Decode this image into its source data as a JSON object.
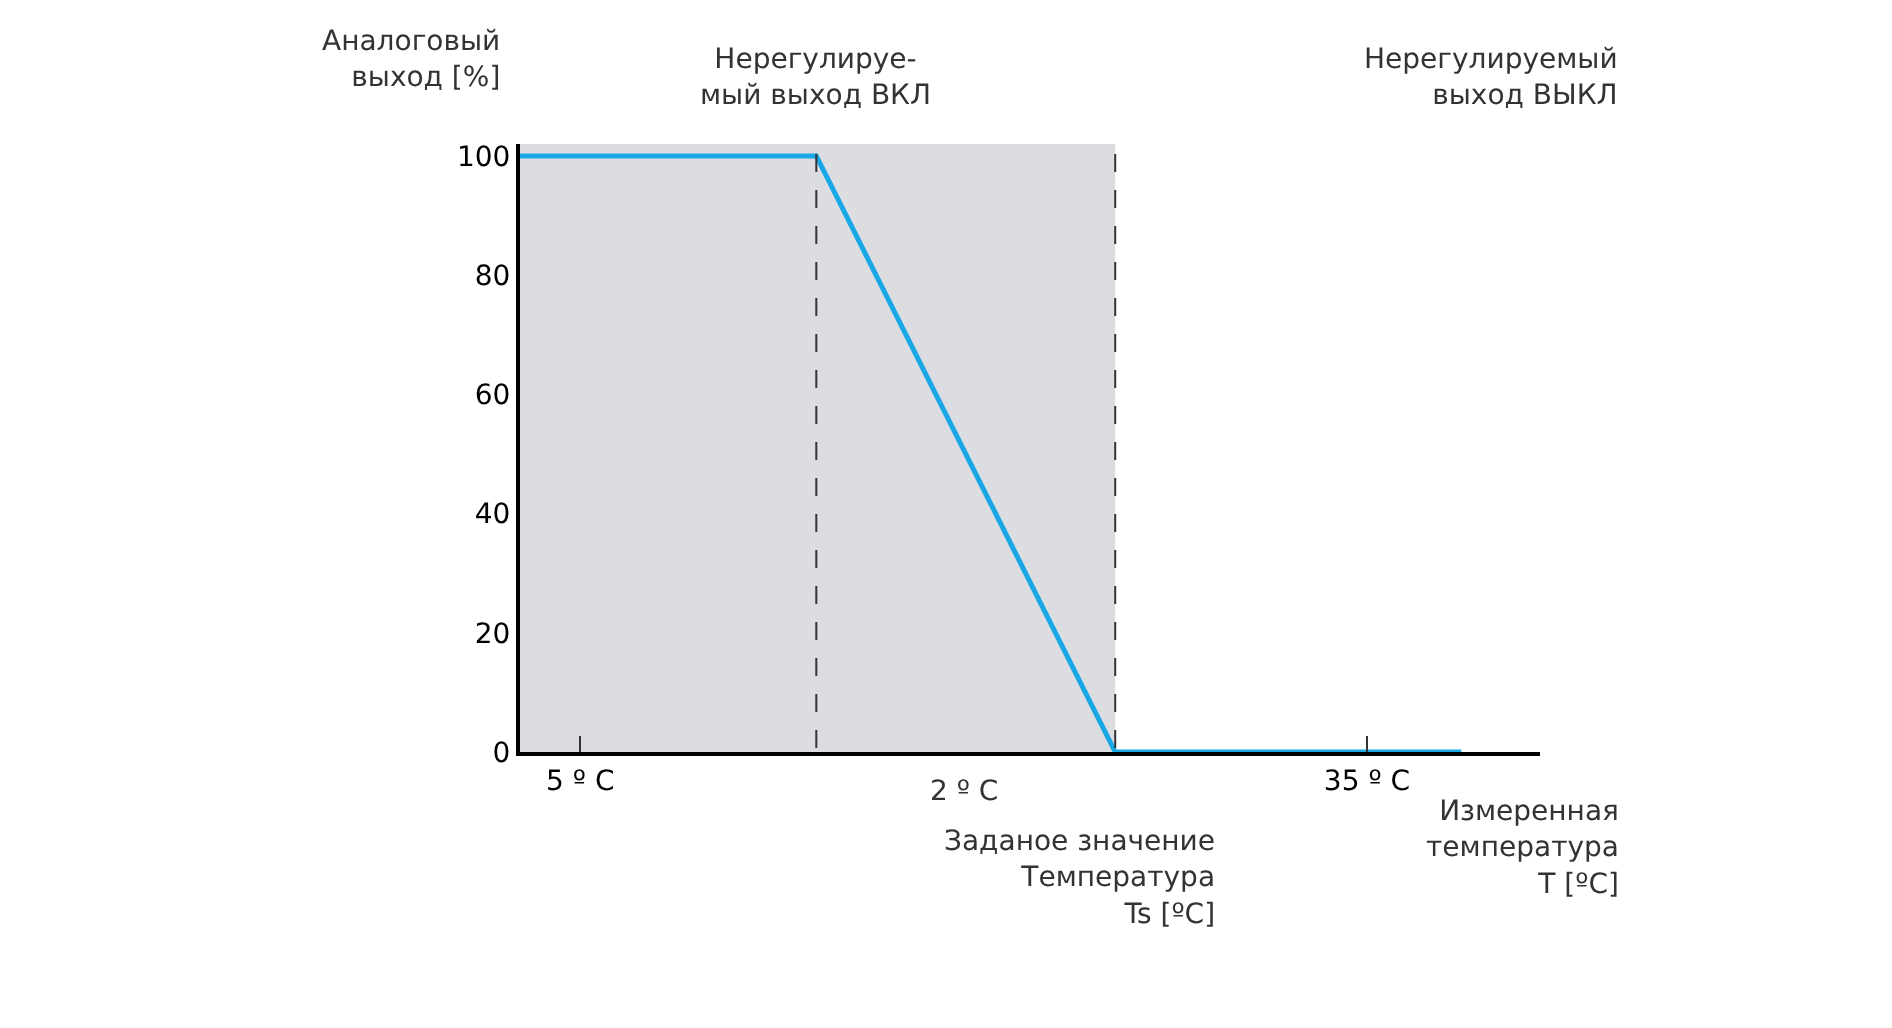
{
  "chart_data": {
    "type": "line",
    "ylabel": "Аналоговый\nвыход [%]",
    "xlabel": "Измеренная\nтемпература\nT [ºC]",
    "x": [
      2.7,
      14,
      25.4,
      38.6
    ],
    "series": [
      {
        "color": "#1aa7e6",
        "values": [
          100,
          100,
          0,
          0
        ]
      }
    ],
    "xlim": [
      2.7,
      41.6
    ],
    "xticks": [
      {
        "value": 5,
        "label": "5 º C"
      },
      {
        "value": 35,
        "label": "35 º C"
      }
    ],
    "ylim": [
      0,
      102
    ],
    "yticks": [
      0,
      20,
      40,
      60,
      80,
      100
    ],
    "marker": "none",
    "line_style": "solid",
    "bands": [
      {
        "axis": "x",
        "from": 2.7,
        "to": 25.4,
        "color": "#dcdde0"
      }
    ],
    "ref_lines": [
      {
        "axis": "x",
        "value": 14,
        "line_style": "dashed",
        "color": "#333333"
      },
      {
        "axis": "x",
        "value": 25.4,
        "line_style": "dashed",
        "color": "#333333"
      }
    ],
    "annotations": [
      "Нерегулируе-\nмый выход ВКЛ",
      "Нерегулируемый\nвыход ВЫКЛ",
      "2 º C",
      "Заданое значение\nТемпература\nTs [ºC]"
    ]
  }
}
